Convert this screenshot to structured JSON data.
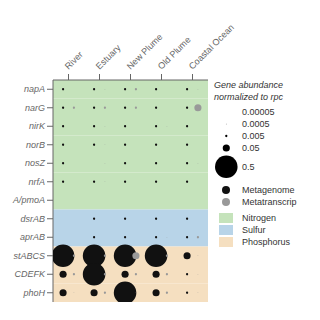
{
  "chart_data": {
    "type": "bubble",
    "categories": [
      "River",
      "Estuary",
      "New Plume",
      "Old Plume",
      "Coastal Ocean"
    ],
    "y_categories": [
      "napA",
      "narG",
      "nirK",
      "norB",
      "nosZ",
      "nrfA",
      "A/pmoA",
      "dsrAB",
      "aprAB",
      "stABCS",
      "CDEFK",
      "phoH"
    ],
    "row_bands": [
      "Nitrogen",
      "Nitrogen",
      "Nitrogen",
      "Nitrogen",
      "Nitrogen",
      "Nitrogen",
      "Nitrogen",
      "Sulfur",
      "Sulfur",
      "Phosphorus",
      "Phosphorus",
      "Phosphorus"
    ],
    "bands": [
      {
        "name": "Nitrogen",
        "color": "#c5e3bb"
      },
      {
        "name": "Sulfur",
        "color": "#b8d4e8"
      },
      {
        "name": "Phosphorus",
        "color": "#f5dfc0"
      }
    ],
    "series": [
      {
        "name": "Metagenome",
        "color": "#111111",
        "values": [
          [
            0.005,
            0.005,
            0.005,
            0.005,
            0.005
          ],
          [
            0.005,
            0.005,
            0.005,
            0.005,
            0.005
          ],
          [
            0.005,
            0.005,
            0.005,
            0.005,
            0.005
          ],
          [
            0.005,
            0.005,
            0.005,
            0.005,
            0.005
          ],
          [
            0.005,
            0.0,
            0.005,
            0.005,
            0.005
          ],
          [
            0.005,
            0.005,
            0.005,
            0.005,
            0.005
          ],
          [
            0.0,
            0.0,
            0.0,
            0.0,
            5e-05
          ],
          [
            0.0,
            0.005,
            0.005,
            0.005,
            0.005
          ],
          [
            0.0,
            0.005,
            0.005,
            0.005,
            0.005
          ],
          [
            0.5,
            0.5,
            0.5,
            0.5,
            0.05
          ],
          [
            0.05,
            0.5,
            0.05,
            0.05,
            0.005
          ],
          [
            0.05,
            0.05,
            0.5,
            0.05,
            0.005
          ]
        ]
      },
      {
        "name": "Metatranscrip",
        "color": "#999999",
        "values": [
          [
            0.0,
            0.0005,
            0.005,
            0.0,
            0.0005
          ],
          [
            0.005,
            0.005,
            0.005,
            0.0,
            0.05
          ],
          [
            0.0,
            0.0005,
            0.0,
            0.0005,
            0.0
          ],
          [
            0.0,
            0.0005,
            0.0,
            0.0,
            0.0
          ],
          [
            0.0,
            0.0005,
            0.0,
            0.0,
            0.0005
          ],
          [
            0.0,
            0.0005,
            0.0,
            0.0,
            0.0
          ],
          [
            0.0,
            0.0,
            0.0,
            0.0,
            0.0
          ],
          [
            0.0,
            0.0,
            0.0,
            0.0,
            0.0
          ],
          [
            0.0,
            0.0,
            0.0,
            0.0005,
            0.005
          ],
          [
            0.005,
            0.005,
            0.05,
            0.005,
            0.0005
          ],
          [
            0.005,
            0.005,
            0.005,
            0.005,
            0.0005
          ],
          [
            0.0005,
            0.005,
            0.0005,
            0.005,
            0.0005
          ]
        ]
      }
    ],
    "size_lim": [
      0,
      0.5
    ],
    "size_legend": {
      "title": "Gene abundance\nnormalized to rpc",
      "values": [
        5e-05,
        0.0005,
        0.005,
        0.05,
        0.5
      ],
      "labels": [
        "0.00005",
        "0.0005",
        "0.005",
        "0.05",
        "0.5"
      ]
    },
    "grid": false,
    "legend": "right"
  }
}
